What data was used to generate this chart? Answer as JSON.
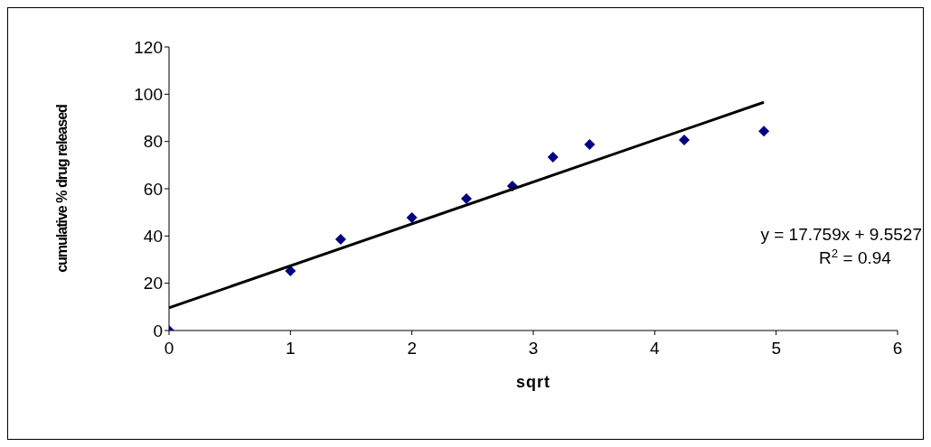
{
  "chart_data": {
    "type": "scatter",
    "xlabel": "sqrt",
    "ylabel": "cumulative % drug released",
    "xlim": [
      0,
      6
    ],
    "xticks": [
      0,
      1,
      2,
      3,
      4,
      5,
      6
    ],
    "ylim": [
      0,
      120
    ],
    "yticks": [
      0,
      20,
      40,
      60,
      80,
      100,
      120
    ],
    "grid": false,
    "legend": false,
    "annotations": [
      "y = 17.759x + 9.5527",
      "R$^{2}$ = 0.94"
    ],
    "series": [
      {
        "color": "#000080",
        "marker": "diamond",
        "x": [
          0,
          1,
          1.414,
          2,
          2.449,
          2.828,
          3.162,
          3.464,
          4.243,
          4.899
        ],
        "values": [
          0,
          25.2,
          38.6,
          47.8,
          55.8,
          61.1,
          73.4,
          78.7,
          80.6,
          84.4
        ]
      },
      {
        "type": "line",
        "color": "#000000",
        "marker": "none",
        "line_style": "solid",
        "x": [
          0,
          4.899
        ],
        "values": [
          9.6,
          96.6
        ]
      }
    ]
  }
}
